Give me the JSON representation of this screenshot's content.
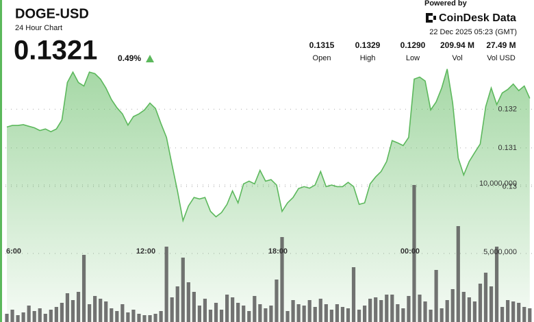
{
  "header": {
    "title": "DOGE-USD",
    "subtitle": "24 Hour Chart",
    "price": "0.1321",
    "change": "0.49%"
  },
  "branding": {
    "powered_by": "Powered by",
    "logo": "CoinDesk Data",
    "timestamp": "22 Dec 2025 05:23 (GMT)"
  },
  "stats": [
    {
      "value": "0.1315",
      "label": "Open"
    },
    {
      "value": "0.1329",
      "label": "High"
    },
    {
      "value": "0.1290",
      "label": "Low"
    },
    {
      "value": "209.94 M",
      "label": "Vol"
    },
    {
      "value": "27.49 M",
      "label": "Vol USD"
    }
  ],
  "chart_data": {
    "type": "area",
    "categories": [
      null,
      "6:00",
      null,
      null,
      null,
      null,
      null,
      null,
      null,
      null,
      null,
      null,
      null,
      null,
      null,
      null,
      null,
      null,
      null,
      null,
      null,
      null,
      null,
      null,
      null,
      "12:00",
      null,
      null,
      null,
      null,
      null,
      null,
      null,
      null,
      null,
      null,
      null,
      null,
      null,
      null,
      null,
      null,
      null,
      null,
      null,
      null,
      null,
      null,
      null,
      "18:00",
      null,
      null,
      null,
      null,
      null,
      null,
      null,
      null,
      null,
      null,
      null,
      null,
      null,
      null,
      null,
      null,
      null,
      null,
      null,
      null,
      null,
      null,
      null,
      "00:00",
      null,
      null,
      null,
      null,
      null,
      null,
      null,
      null,
      null,
      null,
      null,
      null,
      null,
      null,
      null,
      null,
      null,
      null,
      null,
      null,
      null,
      null
    ],
    "series": [
      {
        "color": "#5cb85c",
        "values": [
          0.13154,
          0.13158,
          0.13158,
          0.1316,
          0.13156,
          0.13152,
          0.13145,
          0.13149,
          0.13142,
          0.13149,
          0.13172,
          0.13269,
          0.13296,
          0.13269,
          0.1326,
          0.13296,
          0.13292,
          0.13278,
          0.13255,
          0.13225,
          0.13204,
          0.13188,
          0.13159,
          0.13181,
          0.13188,
          0.13198,
          0.13216,
          0.13202,
          0.13163,
          0.13127,
          0.13057,
          0.12989,
          0.12912,
          0.1295,
          0.12972,
          0.12968,
          0.12972,
          0.12936,
          0.12922,
          0.12933,
          0.12954,
          0.12989,
          0.12958,
          0.13007,
          0.13014,
          0.13007,
          0.13042,
          0.13014,
          0.13018,
          0.13004,
          0.12936,
          0.12958,
          0.12972,
          0.12995,
          0.13,
          0.12996,
          0.13004,
          0.13039,
          0.13,
          0.13004,
          0.13,
          0.13,
          0.13011,
          0.13,
          0.12954,
          0.12958,
          0.13007,
          0.13025,
          0.13039,
          0.13065,
          0.13119,
          0.13113,
          0.13106,
          0.13127,
          0.13278,
          0.13283,
          0.13273,
          0.13198,
          0.13219,
          0.13255,
          0.13304,
          0.13216,
          0.13074,
          0.1303,
          0.13065,
          0.13088,
          0.1311,
          0.13207,
          0.13255,
          0.13212,
          0.13242,
          0.13251,
          0.13265,
          0.13248,
          0.1326,
          0.13228
        ]
      },
      {
        "type": "bar",
        "axis": "y2",
        "color": "#5a5a5a",
        "values": [
          600000,
          900000,
          500000,
          700000,
          1200000,
          800000,
          1000000,
          600000,
          900000,
          1100000,
          1400000,
          2100000,
          1600000,
          2200000,
          4900000,
          1300000,
          1900000,
          1700000,
          1500000,
          1000000,
          800000,
          1300000,
          700000,
          900000,
          600000,
          500000,
          500000,
          600000,
          800000,
          5500000,
          1800000,
          2600000,
          4700000,
          2900000,
          2200000,
          1200000,
          1700000,
          900000,
          1400000,
          900000,
          2000000,
          1800000,
          1400000,
          1200000,
          800000,
          1900000,
          1300000,
          1000000,
          1200000,
          3100000,
          6200000,
          800000,
          1600000,
          1300000,
          1200000,
          1600000,
          1100000,
          1700000,
          1300000,
          900000,
          1300000,
          1100000,
          1000000,
          4000000,
          900000,
          1200000,
          1700000,
          1800000,
          1600000,
          2000000,
          2000000,
          1300000,
          1000000,
          1900000,
          10000000,
          2000000,
          1500000,
          900000,
          3800000,
          1000000,
          1600000,
          2400000,
          7000000,
          2200000,
          1800000,
          1500000,
          2800000,
          3600000,
          2600000,
          5500000,
          1100000,
          1600000,
          1500000,
          1400000,
          1100000,
          1000000
        ]
      }
    ],
    "ylim": [
      0.1265,
      0.1333
    ],
    "yticks": [
      0.13,
      0.131,
      0.132
    ],
    "y2lim": [
      0,
      19200000
    ],
    "y2ticks": [
      {
        "value": 5000000,
        "label": "5,000,000"
      },
      {
        "value": 10000000,
        "label": "10,000,000"
      }
    ],
    "grid": true
  }
}
